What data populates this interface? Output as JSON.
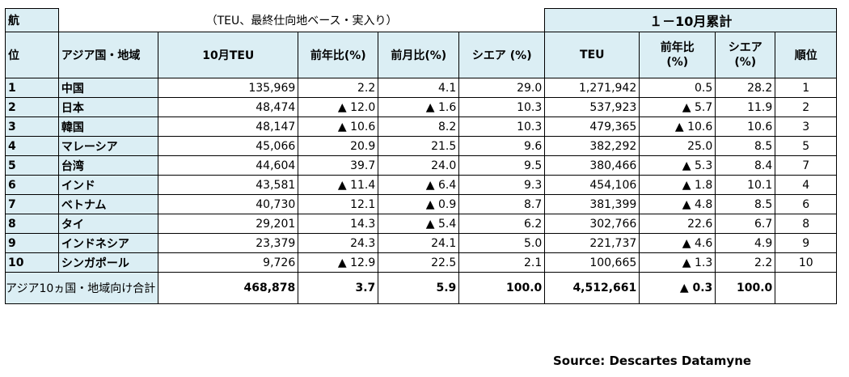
{
  "header": {
    "corner_label": "航",
    "note": "（TEU、最終仕向地ベース・実入り）",
    "cumulative_title": "１－10月累計",
    "col_rank": "位",
    "col_region": "アジア国・地域",
    "col_oct_teu": "10月TEU",
    "col_yoy": "前年比(%)",
    "col_mom": "前月比(%)",
    "col_share": "シエア (%)",
    "col_teu": "TEU",
    "col_cum_yoy": "前年比\n(%)",
    "col_cum_share": "シエア\n(%)",
    "col_cum_rank": "順位"
  },
  "rows": [
    {
      "rank": "1",
      "region": "中国",
      "oct_teu": "135,969",
      "yoy": "2.2",
      "mom": "4.1",
      "share": "29.0",
      "cum_teu": "1,271,942",
      "cum_yoy": "0.5",
      "cum_share": "28.2",
      "cum_rank": "1"
    },
    {
      "rank": "2",
      "region": "日本",
      "oct_teu": "48,474",
      "yoy": "▲ 12.0",
      "mom": "▲ 1.6",
      "share": "10.3",
      "cum_teu": "537,923",
      "cum_yoy": "▲ 5.7",
      "cum_share": "11.9",
      "cum_rank": "2"
    },
    {
      "rank": "3",
      "region": "韓国",
      "oct_teu": "48,147",
      "yoy": "▲ 10.6",
      "mom": "8.2",
      "share": "10.3",
      "cum_teu": "479,365",
      "cum_yoy": "▲ 10.6",
      "cum_share": "10.6",
      "cum_rank": "3"
    },
    {
      "rank": "4",
      "region": "マレーシア",
      "oct_teu": "45,066",
      "yoy": "20.9",
      "mom": "21.5",
      "share": "9.6",
      "cum_teu": "382,292",
      "cum_yoy": "25.0",
      "cum_share": "8.5",
      "cum_rank": "5"
    },
    {
      "rank": "5",
      "region": "台湾",
      "oct_teu": "44,604",
      "yoy": "39.7",
      "mom": "24.0",
      "share": "9.5",
      "cum_teu": "380,466",
      "cum_yoy": "▲ 5.3",
      "cum_share": "8.4",
      "cum_rank": "7"
    },
    {
      "rank": "6",
      "region": "インド",
      "oct_teu": "43,581",
      "yoy": "▲ 11.4",
      "mom": "▲ 6.4",
      "share": "9.3",
      "cum_teu": "454,106",
      "cum_yoy": "▲ 1.8",
      "cum_share": "10.1",
      "cum_rank": "4"
    },
    {
      "rank": "7",
      "region": "ベトナム",
      "oct_teu": "40,730",
      "yoy": "12.1",
      "mom": "▲ 0.9",
      "share": "8.7",
      "cum_teu": "381,399",
      "cum_yoy": "▲ 4.8",
      "cum_share": "8.5",
      "cum_rank": "6"
    },
    {
      "rank": "8",
      "region": "タイ",
      "oct_teu": "29,201",
      "yoy": "14.3",
      "mom": "▲ 5.4",
      "share": "6.2",
      "cum_teu": "302,766",
      "cum_yoy": "22.6",
      "cum_share": "6.7",
      "cum_rank": "8"
    },
    {
      "rank": "9",
      "region": "インドネシア",
      "oct_teu": "23,379",
      "yoy": "24.3",
      "mom": "24.1",
      "share": "5.0",
      "cum_teu": "221,737",
      "cum_yoy": "▲ 4.6",
      "cum_share": "4.9",
      "cum_rank": "9"
    },
    {
      "rank": "10",
      "region": "シンガポール",
      "oct_teu": "9,726",
      "yoy": "▲ 12.9",
      "mom": "22.5",
      "share": "2.1",
      "cum_teu": "100,665",
      "cum_yoy": "▲ 1.3",
      "cum_share": "2.2",
      "cum_rank": "10"
    }
  ],
  "total": {
    "label": "アジア10ヵ国・地域向け合計",
    "oct_teu": "468,878",
    "yoy": "3.7",
    "mom": "5.9",
    "share": "100.0",
    "cum_teu": "4,512,661",
    "cum_yoy": "▲ 0.3",
    "cum_share": "100.0"
  },
  "source": "Source: Descartes Datamyne"
}
